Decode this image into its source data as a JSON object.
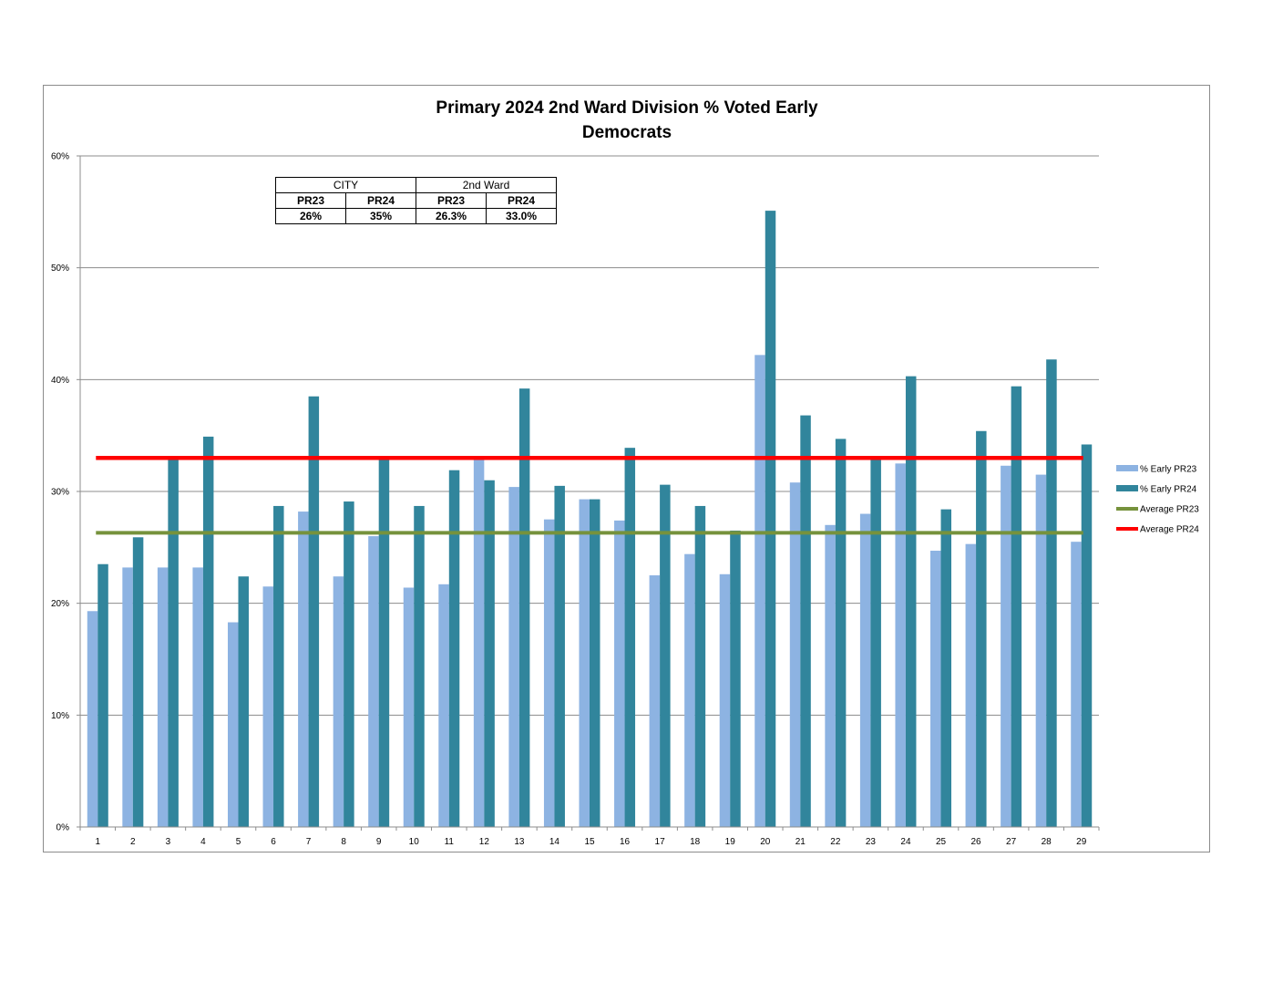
{
  "chart_data": {
    "type": "bar",
    "title": "Primary 2024 2nd Ward Division % Voted Early",
    "subtitle": "Democrats",
    "categories": [
      "1",
      "2",
      "3",
      "4",
      "5",
      "6",
      "7",
      "8",
      "9",
      "10",
      "11",
      "12",
      "13",
      "14",
      "15",
      "16",
      "17",
      "18",
      "19",
      "20",
      "21",
      "22",
      "23",
      "24",
      "25",
      "26",
      "27",
      "28",
      "29"
    ],
    "series": [
      {
        "name": "% Early PR23",
        "color": "#8db3e2",
        "values": [
          19.3,
          23.2,
          23.2,
          23.2,
          18.3,
          21.5,
          28.2,
          22.4,
          26.0,
          21.4,
          21.7,
          33.0,
          30.4,
          27.5,
          29.3,
          27.4,
          22.5,
          24.4,
          22.6,
          42.2,
          30.8,
          27.0,
          28.0,
          32.5,
          24.7,
          25.3,
          32.3,
          31.5,
          25.5
        ]
      },
      {
        "name": "% Early PR24",
        "color": "#31859c",
        "values": [
          23.5,
          25.9,
          33.0,
          34.9,
          22.4,
          28.7,
          38.5,
          29.1,
          33.0,
          28.7,
          31.9,
          31.0,
          39.2,
          30.5,
          29.3,
          33.9,
          30.6,
          28.7,
          26.5,
          55.1,
          36.8,
          34.7,
          33.0,
          40.3,
          28.4,
          35.4,
          39.4,
          41.8,
          34.2
        ]
      }
    ],
    "reference_lines": [
      {
        "name": "Average PR23",
        "value": 26.3,
        "color": "#76923c"
      },
      {
        "name": "Average PR24",
        "value": 33.0,
        "color": "#ff0000"
      }
    ],
    "ylim": [
      0,
      60
    ],
    "yticks": [
      "0%",
      "10%",
      "20%",
      "30%",
      "40%",
      "50%",
      "60%"
    ],
    "ytick_values": [
      0,
      10,
      20,
      30,
      40,
      50,
      60
    ],
    "grid": true,
    "legend_position": "right",
    "legend": [
      "% Early PR23",
      "% Early PR24",
      "Average PR23",
      "Average PR24"
    ]
  },
  "summary_table": {
    "groups": [
      "CITY",
      "2nd Ward"
    ],
    "headers": [
      "PR23",
      "PR24",
      "PR23",
      "PR24"
    ],
    "values": [
      "26%",
      "35%",
      "26.3%",
      "33.0%"
    ]
  }
}
